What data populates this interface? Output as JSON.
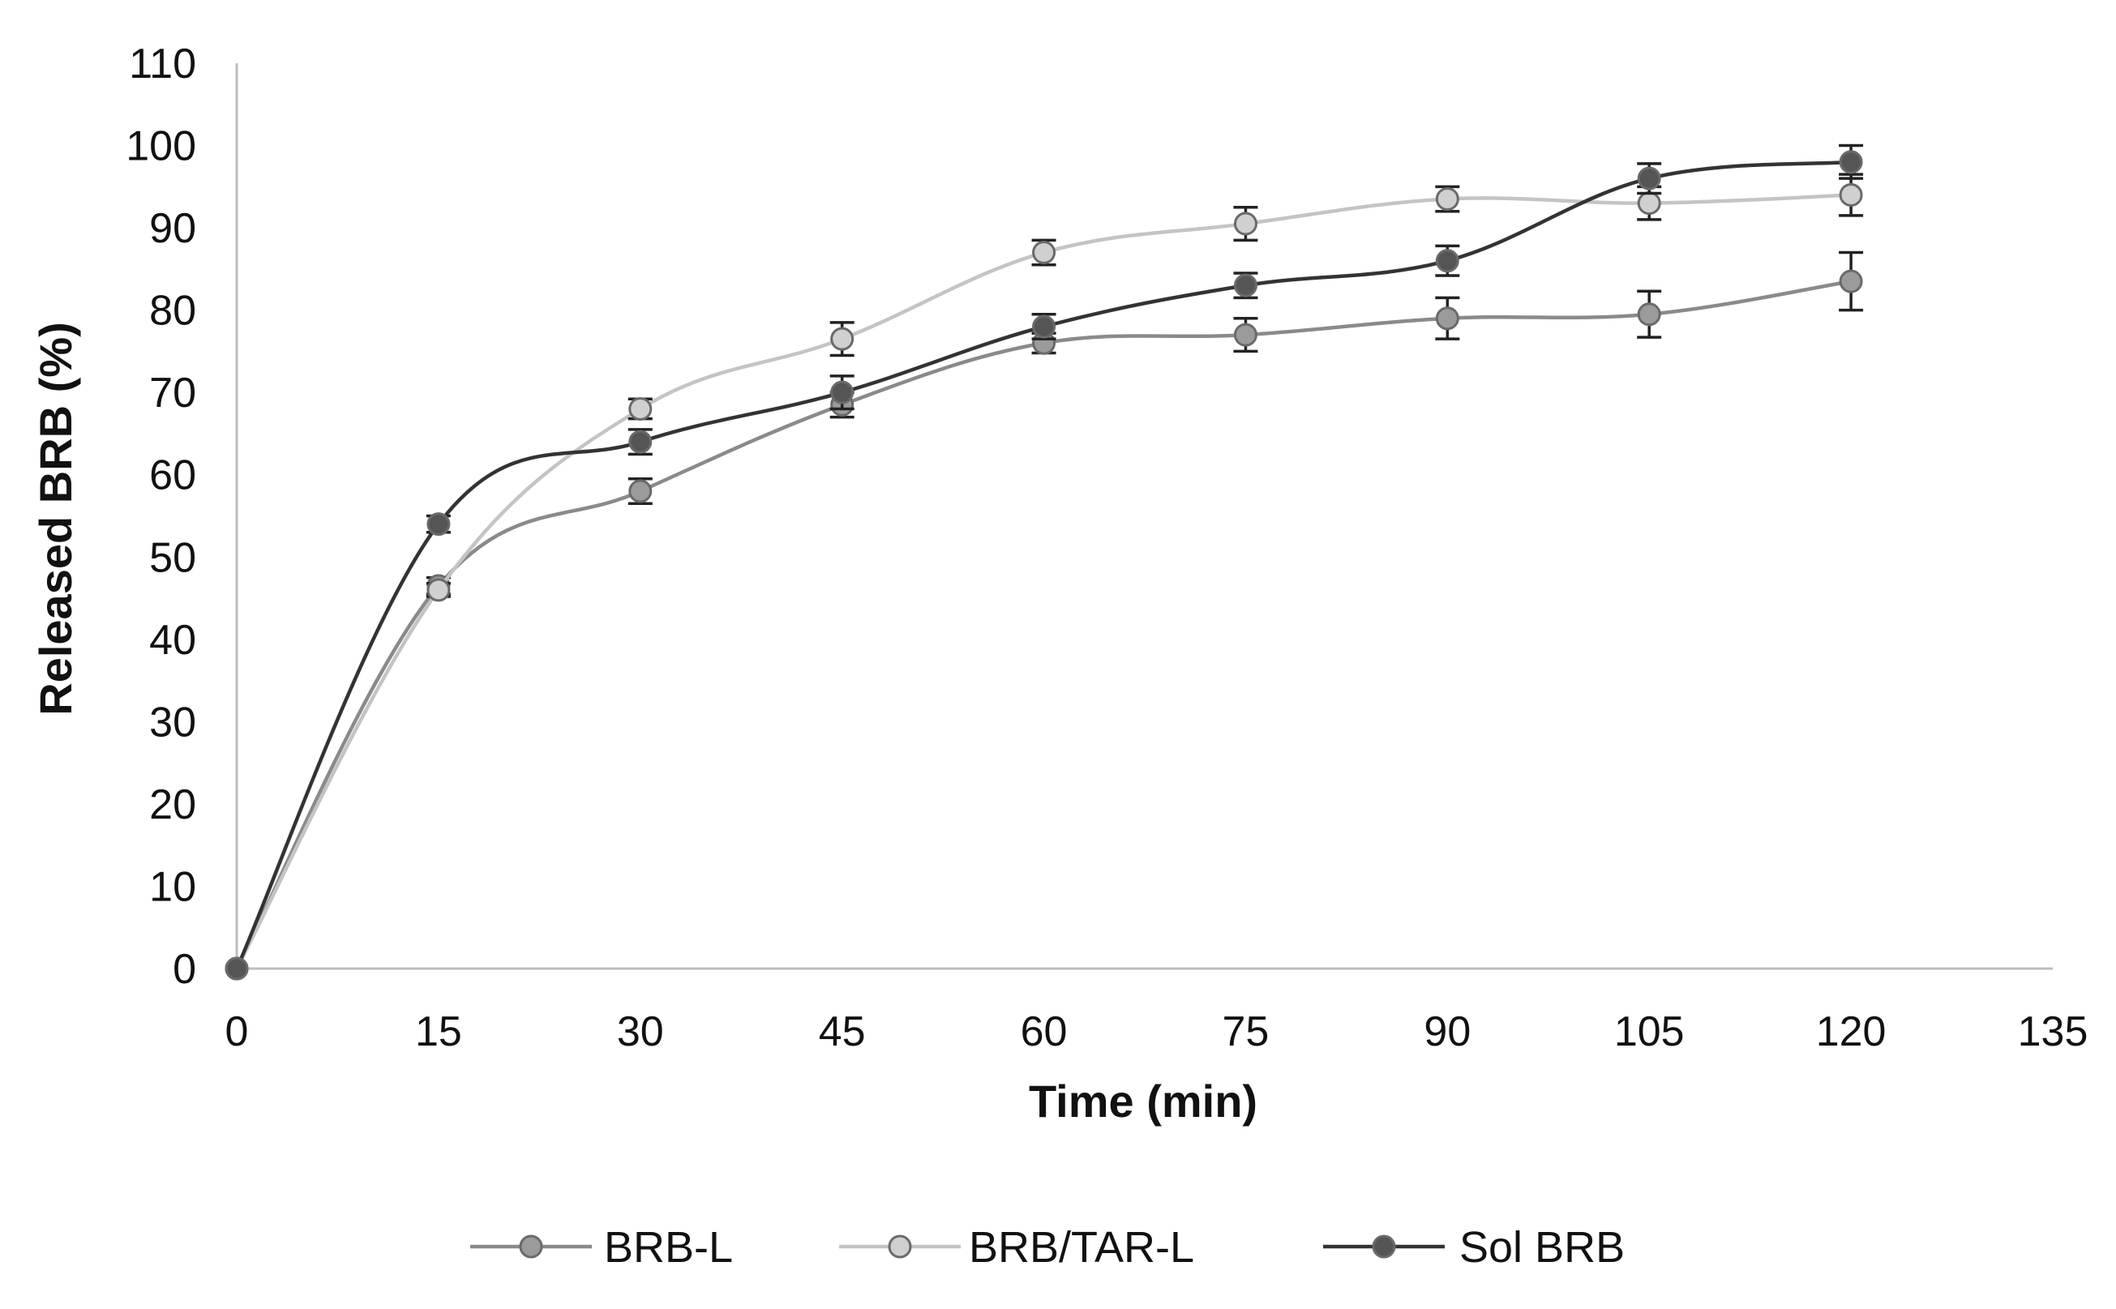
{
  "chart_data": {
    "type": "line",
    "title": "",
    "xlabel": "Time (min)",
    "ylabel": "Released BRB (%)",
    "xlim": [
      0,
      135
    ],
    "ylim": [
      0,
      110
    ],
    "x_ticks": [
      0,
      15,
      30,
      45,
      60,
      75,
      90,
      105,
      120,
      135
    ],
    "y_ticks": [
      0,
      10,
      20,
      30,
      40,
      50,
      60,
      70,
      80,
      90,
      100,
      110
    ],
    "grid": false,
    "legend_position": "bottom",
    "x": [
      0,
      15,
      30,
      45,
      60,
      75,
      90,
      105,
      120
    ],
    "series": [
      {
        "name": "BRB-L",
        "color": "#8a8a8a",
        "marker_color": "#9b9b9b",
        "values": [
          0,
          46.5,
          58,
          68.5,
          76,
          77,
          79,
          79.5,
          83.5
        ],
        "errors": [
          0,
          1.0,
          1.5,
          1.5,
          1.2,
          2.0,
          2.5,
          2.8,
          3.5
        ]
      },
      {
        "name": "BRB/TAR-L",
        "color": "#c4c4c4",
        "marker_color": "#d0d0d0",
        "values": [
          0,
          46,
          68,
          76.5,
          87,
          90.5,
          93.5,
          93,
          94
        ],
        "errors": [
          0,
          0.8,
          1.2,
          2.0,
          1.5,
          2.0,
          1.5,
          2.0,
          2.5
        ]
      },
      {
        "name": "Sol BRB",
        "color": "#333333",
        "marker_color": "#555555",
        "values": [
          0,
          54,
          64,
          70,
          78,
          83,
          86,
          96,
          98
        ],
        "errors": [
          0,
          1.0,
          1.5,
          2.0,
          1.5,
          1.5,
          1.8,
          1.8,
          2.0
        ]
      }
    ]
  }
}
